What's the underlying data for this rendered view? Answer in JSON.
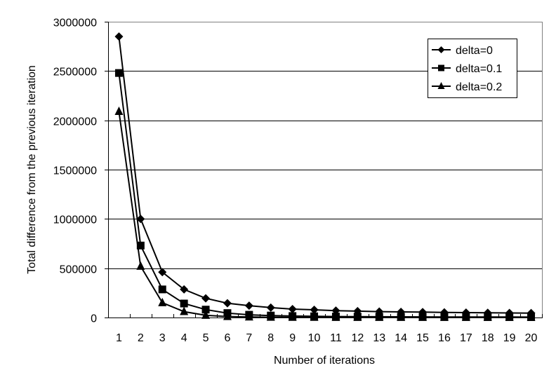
{
  "chart_data": {
    "type": "line",
    "title": "",
    "xlabel": "Number of iterations",
    "ylabel": "Total difference from the previous iteration",
    "ylim": [
      0,
      3000000
    ],
    "yticks": [
      0,
      500000,
      1000000,
      1500000,
      2000000,
      2500000,
      3000000
    ],
    "ytick_labels": [
      "0",
      "500000",
      "1000000",
      "1500000",
      "2000000",
      "2500000",
      "3000000"
    ],
    "categories": [
      "1",
      "2",
      "3",
      "4",
      "5",
      "6",
      "7",
      "8",
      "9",
      "10",
      "11",
      "12",
      "13",
      "14",
      "15",
      "16",
      "17",
      "18",
      "19",
      "20"
    ],
    "grid": {
      "horizontal": true,
      "vertical": false
    },
    "legend_position": "upper-right-inside",
    "series": [
      {
        "name": "delta=0",
        "marker": "diamond",
        "values": [
          2850000,
          1000000,
          460000,
          285000,
          195000,
          145000,
          120000,
          100000,
          85000,
          78000,
          70000,
          65000,
          60000,
          57000,
          55000,
          52000,
          50000,
          48000,
          46000,
          45000
        ]
      },
      {
        "name": "delta=0.1",
        "marker": "square",
        "values": [
          2480000,
          730000,
          285000,
          142000,
          80000,
          45000,
          28000,
          20000,
          15000,
          12000,
          10000,
          9000,
          8000,
          7000,
          6500,
          6000,
          5500,
          5000,
          5000,
          4500
        ]
      },
      {
        "name": "delta=0.2",
        "marker": "triangle",
        "values": [
          2090000,
          520000,
          150000,
          60000,
          22000,
          10000,
          5000,
          3000,
          2000,
          1500,
          1200,
          1000,
          900,
          800,
          700,
          600,
          550,
          500,
          450,
          400
        ]
      }
    ]
  },
  "colors": {
    "line": "#000000",
    "grid": "#000000",
    "plot_border": "#808080",
    "background": "#ffffff"
  }
}
